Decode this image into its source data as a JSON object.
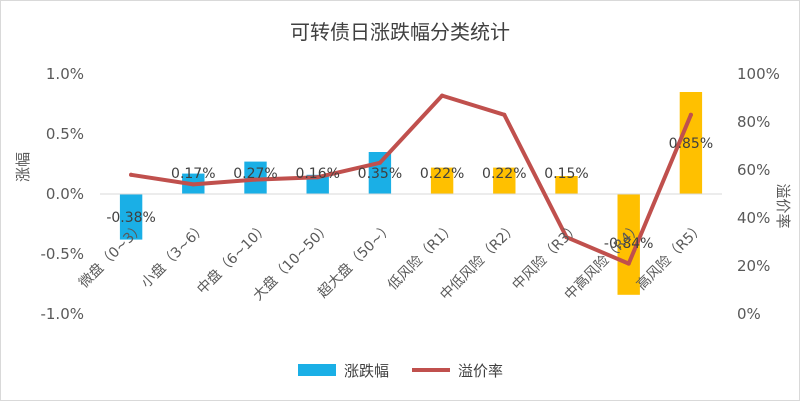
{
  "chart_data": {
    "type": "bar+line",
    "title": "可转债日涨跌幅分类统计",
    "categories": [
      "微盘（0~3）",
      "小盘（3~6）",
      "中盘（6~10）",
      "大盘（10~50）",
      "超大盘（50~）",
      "低风险（R1）",
      "中低风险（R2）",
      "中风险（R3）",
      "中高风险（R4）",
      "高风险（R5）"
    ],
    "series": [
      {
        "name": "涨跌幅",
        "type": "bar",
        "axis": "left",
        "values": [
          -0.38,
          0.17,
          0.27,
          0.16,
          0.35,
          0.22,
          0.22,
          0.15,
          -0.84,
          0.85
        ],
        "labels": [
          "-0.38%",
          "0.17%",
          "0.27%",
          "0.16%",
          "0.35%",
          "0.22%",
          "0.22%",
          "0.15%",
          "-0.84%",
          "0.85%"
        ],
        "colors": [
          "#1AAFE6",
          "#1AAFE6",
          "#1AAFE6",
          "#1AAFE6",
          "#1AAFE6",
          "#FFC000",
          "#FFC000",
          "#FFC000",
          "#FFC000",
          "#FFC000"
        ]
      },
      {
        "name": "溢价率",
        "type": "line",
        "axis": "right",
        "values": [
          58,
          54,
          56,
          57,
          63,
          91,
          83,
          32,
          21,
          83
        ],
        "color": "#C0504D"
      }
    ],
    "ylabel": "涨幅",
    "y2label": "溢价率",
    "ylim": [
      -1.0,
      1.0
    ],
    "yticks": [
      "-1.0%",
      "-0.5%",
      "0.0%",
      "0.5%",
      "1.0%"
    ],
    "y2lim": [
      0,
      100
    ],
    "y2ticks": [
      "0%",
      "20%",
      "40%",
      "60%",
      "80%",
      "100%"
    ],
    "legend": "bottom",
    "grid": false
  }
}
